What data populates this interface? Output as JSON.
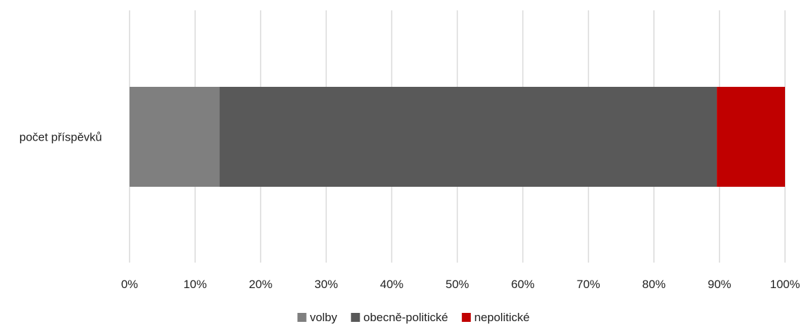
{
  "chart_data": {
    "type": "bar",
    "orientation": "horizontal",
    "stacked": "percent",
    "categories": [
      "počet příspěvků"
    ],
    "series": [
      {
        "name": "volby",
        "values": [
          13.7
        ],
        "color": "#7f7f7f"
      },
      {
        "name": "obecně-politické",
        "values": [
          75.9
        ],
        "color": "#595959"
      },
      {
        "name": "nepolitické",
        "values": [
          10.4
        ],
        "color": "#c00000"
      }
    ],
    "xlim": [
      0,
      100
    ],
    "xticks": [
      "0%",
      "10%",
      "20%",
      "30%",
      "40%",
      "50%",
      "60%",
      "70%",
      "80%",
      "90%",
      "100%"
    ],
    "grid": true,
    "grid_color": "#d9d9d9",
    "legend_position": "bottom"
  }
}
